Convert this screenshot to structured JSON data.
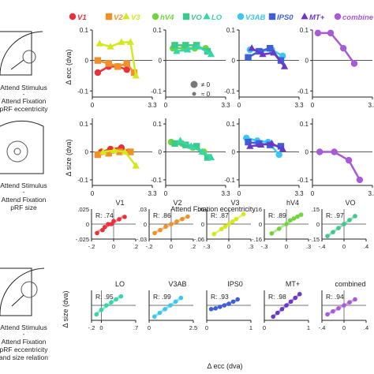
{
  "legend": [
    {
      "key": "v1",
      "label": "V1",
      "color": "#e8313a",
      "marker": "circle"
    },
    {
      "key": "v2",
      "label": "V2",
      "color": "#f0902a",
      "marker": "square"
    },
    {
      "key": "v3",
      "label": "V3",
      "color": "#d4e81e",
      "marker": "triangle"
    },
    {
      "key": "hv4",
      "label": "hV4",
      "color": "#6fd63a",
      "marker": "circle"
    },
    {
      "key": "vo",
      "label": "VO",
      "color": "#3ec98c",
      "marker": "square"
    },
    {
      "key": "lo",
      "label": "LO",
      "color": "#36d6a8",
      "marker": "triangle"
    },
    {
      "key": "v3ab",
      "label": "V3AB",
      "color": "#38c8f0",
      "marker": "circle"
    },
    {
      "key": "ips0",
      "label": "IPS0",
      "color": "#3e5fd8",
      "marker": "square"
    },
    {
      "key": "mt",
      "label": "MT+",
      "color": "#6a38c8",
      "marker": "triangle"
    },
    {
      "key": "comb",
      "label": "combine",
      "color": "#a85ad8",
      "marker": "circle"
    }
  ],
  "schematics": [
    {
      "lines": [
        "Attend Stimulus",
        "-",
        "Attend Fixation",
        "pRF eccentricity"
      ]
    },
    {
      "lines": [
        "Attend Stimulus",
        "-",
        "Attend Fixation",
        "pRF size"
      ]
    },
    {
      "lines": [
        "Attend Stimulus",
        "-",
        "Attend Fixation",
        "pRF eccentricity",
        "and size relation"
      ]
    }
  ],
  "size_key": [
    {
      "label": "≠ 0"
    },
    {
      "label": "≈ 0"
    }
  ],
  "chart_data": [
    {
      "type": "line",
      "ylabel": "Δ ecc (dva)",
      "yticks": [
        "0.1",
        "0",
        "-0.1"
      ],
      "ylim": [
        -0.12,
        0.1
      ],
      "xlim": [
        0,
        3.3
      ],
      "xticks": [
        "0",
        "3.3"
      ],
      "panels": [
        {
          "series": [
            {
              "name": "V1",
              "x": [
                0.3,
                0.9,
                1.4,
                1.9
              ],
              "values": [
                -0.04,
                -0.02,
                -0.02,
                -0.03
              ]
            },
            {
              "name": "V2",
              "x": [
                0.3,
                0.9,
                1.4,
                1.9,
                2.3
              ],
              "values": [
                0.0,
                -0.01,
                -0.02,
                -0.01,
                -0.04
              ]
            },
            {
              "name": "V3",
              "x": [
                0.4,
                1.0,
                1.6,
                2.1,
                2.4
              ],
              "values": [
                0.055,
                0.045,
                0.06,
                0.06,
                -0.05
              ]
            }
          ]
        },
        {
          "series": [
            {
              "name": "hV4",
              "x": [
                0.4,
                1.0,
                1.6,
                2.2
              ],
              "values": [
                0.04,
                0.04,
                0.04,
                0.04
              ]
            },
            {
              "name": "VO",
              "x": [
                0.5,
                1.1,
                1.7,
                2.3
              ],
              "values": [
                0.05,
                0.05,
                0.05,
                0.03
              ]
            },
            {
              "name": "LO",
              "x": [
                0.6,
                1.2,
                1.8,
                2.5
              ],
              "values": [
                0.03,
                0.035,
                0.045,
                0.02
              ]
            }
          ]
        },
        {
          "series": [
            {
              "name": "V3AB",
              "x": [
                0.6,
                1.2,
                1.8,
                2.4
              ],
              "values": [
                0.035,
                0.03,
                0.035,
                0.015
              ]
            },
            {
              "name": "IPS0",
              "x": [
                0.5,
                1.1,
                1.7,
                2.3
              ],
              "values": [
                0.01,
                0.03,
                0.04,
                0.0
              ]
            },
            {
              "name": "MT+",
              "x": [
                0.7,
                1.3,
                1.9,
                2.5
              ],
              "values": [
                0.04,
                0.02,
                0.025,
                -0.02
              ]
            }
          ]
        },
        {
          "series": [
            {
              "name": "combine",
              "x": [
                0.3,
                1.0,
                1.7,
                2.3
              ],
              "values": [
                0.09,
                0.09,
                0.04,
                -0.01
              ]
            }
          ]
        }
      ]
    },
    {
      "type": "line",
      "ylabel": "Δ size (dva)",
      "yticks": [
        "0.1",
        "0",
        "-0.1"
      ],
      "ylim": [
        -0.12,
        0.12
      ],
      "xlim": [
        0,
        3.3
      ],
      "xticks": [
        "0",
        "3.3"
      ],
      "xlabel": "Attend Fixation eccentricity",
      "panels": [
        {
          "series": [
            {
              "name": "V1",
              "x": [
                0.5,
                1.0,
                1.6,
                2.0
              ],
              "values": [
                0.0,
                0.01,
                0.015,
                0.0
              ]
            },
            {
              "name": "V2",
              "x": [
                0.3,
                0.9,
                1.5,
                2.1
              ],
              "values": [
                -0.01,
                -0.005,
                0.0,
                0.0
              ]
            },
            {
              "name": "V3",
              "x": [
                0.6,
                1.2,
                1.8,
                2.4
              ],
              "values": [
                0.0,
                0.005,
                0.0,
                -0.05
              ]
            }
          ]
        },
        {
          "series": [
            {
              "name": "hV4",
              "x": [
                0.3,
                0.9,
                1.5,
                2.1
              ],
              "values": [
                0.035,
                0.03,
                0.015,
                0.0
              ]
            },
            {
              "name": "VO",
              "x": [
                0.5,
                1.1,
                1.7,
                2.3
              ],
              "values": [
                0.03,
                0.025,
                0.02,
                -0.02
              ]
            },
            {
              "name": "LO",
              "x": [
                0.8,
                1.4,
                2.0,
                2.5
              ],
              "values": [
                0.04,
                0.02,
                0.0,
                -0.02
              ]
            }
          ]
        },
        {
          "series": [
            {
              "name": "V3AB",
              "x": [
                0.4,
                1.0,
                1.6,
                2.2
              ],
              "values": [
                0.05,
                0.04,
                0.035,
                -0.01
              ]
            },
            {
              "name": "IPS0",
              "x": [
                0.5,
                1.1,
                1.7,
                2.3
              ],
              "values": [
                0.035,
                0.03,
                0.025,
                0.02
              ]
            },
            {
              "name": "MT+",
              "x": [
                0.6,
                1.2,
                1.8,
                2.4
              ],
              "values": [
                0.02,
                0.025,
                0.03,
                0.01
              ]
            }
          ]
        },
        {
          "series": [
            {
              "name": "combine",
              "x": [
                0.4,
                1.2,
                2.0,
                2.6
              ],
              "values": [
                0.0,
                0.0,
                -0.03,
                -0.1
              ]
            }
          ]
        }
      ]
    },
    {
      "type": "scatter",
      "ylabel": "Δ size (dva)",
      "xlabel": "Δ ecc (dva)",
      "panels": [
        {
          "name": "V1",
          "r": "R: .74",
          "xlim": [
            -0.2,
            0.2
          ],
          "ylim": [
            -0.025,
            0.025
          ],
          "xticks": [
            "-.2",
            "0",
            ".2"
          ],
          "yticks": [
            ".025",
            "0",
            "-.025"
          ],
          "x": [
            -0.15,
            -0.1,
            -0.08,
            -0.05,
            -0.02,
            0.0,
            0.05,
            0.1
          ],
          "y": [
            -0.015,
            -0.01,
            -0.005,
            0.0,
            0.0,
            0.005,
            0.008,
            0.012
          ]
        },
        {
          "name": "V2",
          "r": "R: .86",
          "xlim": [
            -0.2,
            0.2
          ],
          "ylim": [
            -0.03,
            0.03
          ],
          "xticks": [
            "-.2",
            "0",
            ".2"
          ],
          "yticks": [
            ".03",
            "0",
            "-.03"
          ],
          "x": [
            -0.15,
            -0.1,
            -0.05,
            0.0,
            0.05,
            0.1,
            0.15
          ],
          "y": [
            -0.018,
            -0.012,
            -0.005,
            0.0,
            0.005,
            0.01,
            0.015
          ]
        },
        {
          "name": "V3",
          "r": "R: .87",
          "xlim": [
            -0.3,
            0.3
          ],
          "ylim": [
            -0.06,
            0.06
          ],
          "xticks": [
            "-.3",
            "0",
            ".3"
          ],
          "yticks": [
            ".06",
            "0",
            "-.06"
          ],
          "x": [
            -0.2,
            -0.1,
            -0.05,
            0.0,
            0.05,
            0.1,
            0.2
          ],
          "y": [
            -0.04,
            -0.02,
            -0.01,
            0.0,
            0.01,
            0.02,
            0.04
          ]
        },
        {
          "name": "hV4",
          "r": "R: .89",
          "xlim": [
            -0.3,
            0.3
          ],
          "ylim": [
            -0.16,
            0.16
          ],
          "xticks": [
            "-.3",
            "0",
            ".3"
          ],
          "yticks": [
            ".16",
            "0",
            "-.16"
          ],
          "x": [
            -0.2,
            -0.1,
            0.0,
            0.05,
            0.1,
            0.15,
            0.2
          ],
          "y": [
            -0.1,
            -0.05,
            0.0,
            0.04,
            0.06,
            0.08,
            0.1
          ]
        },
        {
          "name": "VO",
          "r": "R: .97",
          "xlim": [
            -0.4,
            0.4
          ],
          "ylim": [
            -0.15,
            0.15
          ],
          "xticks": [
            "-.4",
            "0",
            ".4"
          ],
          "yticks": [
            ".15",
            "0",
            "-.15"
          ],
          "x": [
            -0.3,
            -0.2,
            -0.1,
            0.0,
            0.1,
            0.2
          ],
          "y": [
            -0.12,
            -0.08,
            -0.04,
            0.0,
            0.04,
            0.08
          ]
        },
        {
          "name": "LO",
          "r": "R: .95",
          "xlim": [
            -0.2,
            0.7
          ],
          "ylim": [
            -0.2,
            0.2
          ],
          "xticks": [
            "-.2",
            "0",
            ".7"
          ],
          "yticks": [],
          "x": [
            -0.1,
            0.0,
            0.1,
            0.2,
            0.3,
            0.4
          ],
          "y": [
            -0.12,
            -0.06,
            0.0,
            0.04,
            0.08,
            0.12
          ]
        },
        {
          "name": "V3AB",
          "r": "R: .99",
          "xlim": [
            0,
            2.5
          ],
          "ylim": [
            -0.2,
            0.2
          ],
          "xticks": [
            "0",
            "2.5"
          ],
          "yticks": [],
          "x": [
            0.3,
            0.6,
            0.9,
            1.2,
            1.5,
            1.8
          ],
          "y": [
            -0.15,
            -0.1,
            -0.05,
            0.0,
            0.05,
            0.1
          ]
        },
        {
          "name": "IPS0",
          "r": "R: .93",
          "xlim": [
            0,
            1
          ],
          "ylim": [
            -0.2,
            0.2
          ],
          "xticks": [
            "0",
            "1"
          ],
          "yticks": [],
          "x": [
            0.1,
            0.2,
            0.3,
            0.4,
            0.5,
            0.6,
            0.7
          ],
          "y": [
            -0.05,
            -0.04,
            -0.02,
            0.0,
            0.02,
            0.05,
            0.08
          ]
        },
        {
          "name": "MT+",
          "r": "R: .98",
          "xlim": [
            0,
            1
          ],
          "ylim": [
            -0.2,
            0.2
          ],
          "xticks": [
            "0",
            "1"
          ],
          "yticks": [],
          "x": [
            0.2,
            0.3,
            0.4,
            0.5,
            0.6,
            0.7,
            0.8
          ],
          "y": [
            -0.15,
            -0.1,
            -0.05,
            0.0,
            0.05,
            0.1,
            0.15
          ]
        },
        {
          "name": "combined",
          "r": "R: .94",
          "xlim": [
            -0.4,
            0.4
          ],
          "ylim": [
            -0.2,
            0.2
          ],
          "xticks": [
            "-.4",
            "0",
            ".4"
          ],
          "yticks": [],
          "x": [
            -0.3,
            -0.2,
            -0.1,
            0.0,
            0.1,
            0.2
          ],
          "y": [
            -0.12,
            -0.08,
            -0.04,
            0.0,
            0.04,
            0.08
          ]
        }
      ]
    }
  ]
}
